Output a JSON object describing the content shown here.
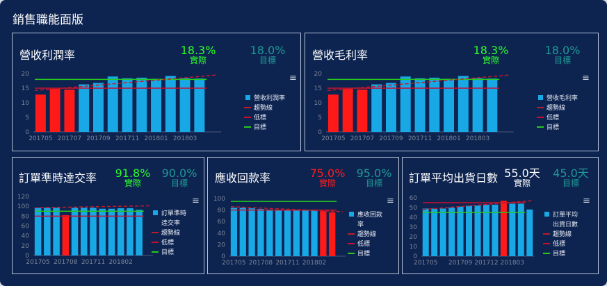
{
  "page": {
    "title": "銷售職能面版"
  },
  "colors": {
    "bar": "#19a8e6",
    "bar_low": "#ff1a1a",
    "trend": "#c01a2a",
    "low": "#c8102e",
    "target": "#28c81e",
    "green_text": "#2bff2b",
    "teal_text": "#1f9a95",
    "red_text": "#ff1e1e",
    "white_text": "#ffffff"
  },
  "panels": [
    {
      "title": "營收利潤率",
      "actual": {
        "value": "18.3%",
        "label": "實際",
        "color": "green"
      },
      "target": {
        "value": "18.0%",
        "label": "目標"
      },
      "menu": "≡",
      "chart_data": {
        "type": "bar",
        "categories": [
          "201705",
          "201706",
          "201707",
          "201708",
          "201709",
          "201710",
          "201711",
          "201712",
          "201801",
          "201802",
          "201803",
          "201804",
          "201805"
        ],
        "values": [
          12.8,
          14.8,
          14.5,
          16.3,
          16.8,
          19.0,
          18.4,
          18.6,
          18.2,
          19.2,
          18.4,
          18.3,
          null
        ],
        "low_flags": [
          true,
          true,
          true,
          false,
          false,
          false,
          false,
          false,
          false,
          false,
          false,
          false,
          false
        ],
        "tick_labels": [
          "201705",
          "201707",
          "201709",
          "201711",
          "201801",
          "201803"
        ],
        "ylim": [
          0,
          20
        ],
        "yticks": [
          0,
          5,
          10,
          15,
          20
        ],
        "target": 18.0,
        "low": 15.0,
        "trend": [
          14.2,
          19.5
        ],
        "legend": [
          "營收利潤率",
          "趨勢線",
          "低標",
          "目標"
        ]
      }
    },
    {
      "title": "營收毛利率",
      "actual": {
        "value": "18.3%",
        "label": "實際",
        "color": "green"
      },
      "target": {
        "value": "18.0%",
        "label": "目標"
      },
      "menu": "≡",
      "chart_data": {
        "type": "bar",
        "categories": [
          "201705",
          "201706",
          "201707",
          "201708",
          "201709",
          "201710",
          "201711",
          "201712",
          "201801",
          "201802",
          "201803",
          "201804",
          "201805"
        ],
        "values": [
          12.8,
          14.8,
          14.5,
          16.3,
          16.8,
          19.0,
          18.4,
          18.6,
          18.2,
          19.2,
          18.4,
          18.3,
          null
        ],
        "low_flags": [
          true,
          true,
          true,
          false,
          false,
          false,
          false,
          false,
          false,
          false,
          false,
          false,
          false
        ],
        "tick_labels": [
          "201705",
          "201707",
          "201709",
          "201711",
          "201801",
          "201803"
        ],
        "ylim": [
          0,
          20
        ],
        "yticks": [
          0,
          5,
          10,
          15,
          20
        ],
        "target": 18.0,
        "low": 15.0,
        "trend": [
          14.2,
          19.5
        ],
        "legend": [
          "營收毛利率",
          "趨勢線",
          "低標",
          "目標"
        ]
      }
    },
    {
      "title": "訂單準時達交率",
      "actual": {
        "value": "91.8%",
        "label": "實際",
        "color": "green"
      },
      "target": {
        "value": "90.0%",
        "label": "目標"
      },
      "menu": "≡",
      "chart_data": {
        "type": "bar",
        "categories": [
          "201705",
          "201706",
          "201707",
          "201708",
          "201709",
          "201710",
          "201711",
          "201712",
          "201801",
          "201802",
          "201803",
          "201804",
          "201805"
        ],
        "values": [
          97,
          97,
          97,
          82,
          97,
          97,
          97,
          95,
          95,
          96,
          96,
          93,
          null
        ],
        "low_flags": [
          false,
          false,
          false,
          true,
          false,
          false,
          false,
          false,
          false,
          false,
          false,
          false,
          false
        ],
        "tick_labels": [
          "201705",
          "201708",
          "201711",
          "201802"
        ],
        "ylim": [
          0,
          120
        ],
        "yticks": [
          0,
          20,
          40,
          60,
          80,
          100,
          120
        ],
        "target": 90.0,
        "low": 80.0,
        "trend": [
          97,
          101
        ],
        "legend": [
          "訂單準時",
          "達交率",
          "趨勢線",
          "低標",
          "目標"
        ]
      }
    },
    {
      "title": "應收回款率",
      "actual": {
        "value": "75.0%",
        "label": "實際",
        "color": "red"
      },
      "target": {
        "value": "95.0%",
        "label": "目標"
      },
      "menu": "≡",
      "chart_data": {
        "type": "bar",
        "categories": [
          "201705",
          "201706",
          "201707",
          "201708",
          "201709",
          "201710",
          "201711",
          "201712",
          "201801",
          "201802",
          "201803",
          "201804",
          "201805"
        ],
        "values": [
          84,
          84,
          83,
          82,
          81,
          80,
          80,
          80,
          80,
          80,
          78,
          76,
          null
        ],
        "low_flags": [
          false,
          false,
          false,
          false,
          false,
          false,
          false,
          false,
          false,
          false,
          true,
          true,
          false
        ],
        "tick_labels": [
          "201705",
          "201708",
          "201711",
          "201802"
        ],
        "ylim": [
          0,
          100
        ],
        "yticks": [
          0,
          20,
          40,
          60,
          80,
          100
        ],
        "target": 95.0,
        "low": 80.0,
        "trend": [
          86,
          77
        ],
        "legend": [
          "應收回款",
          "率",
          "趨勢線",
          "低標",
          "目標"
        ]
      }
    },
    {
      "title": "訂單平均出貨日數",
      "actual": {
        "value": "55.0天",
        "label": "實際",
        "color": "white"
      },
      "target": {
        "value": "45.0天",
        "label": "目標"
      },
      "menu": "≡",
      "chart_data": {
        "type": "bar",
        "categories": [
          "201705",
          "201706",
          "201707",
          "201708",
          "201709",
          "201710",
          "201711",
          "201712",
          "201801",
          "201802",
          "201803",
          "201804",
          "201805"
        ],
        "values": [
          49,
          49,
          49,
          50,
          51,
          52,
          52,
          53,
          53,
          57,
          54,
          54,
          48
        ],
        "low_flags": [
          false,
          false,
          false,
          false,
          false,
          false,
          false,
          false,
          false,
          true,
          false,
          false,
          false
        ],
        "tick_labels": [
          "201705",
          "201709",
          "201712",
          "201803"
        ],
        "ylim": [
          0,
          60
        ],
        "yticks": [
          0,
          10,
          20,
          30,
          40,
          50,
          60
        ],
        "target": 45.0,
        "low": 55.0,
        "trend": [
          48,
          57
        ],
        "legend": [
          "訂單平均",
          "出貨日數",
          "趨勢線",
          "低標",
          "目標"
        ]
      }
    }
  ]
}
